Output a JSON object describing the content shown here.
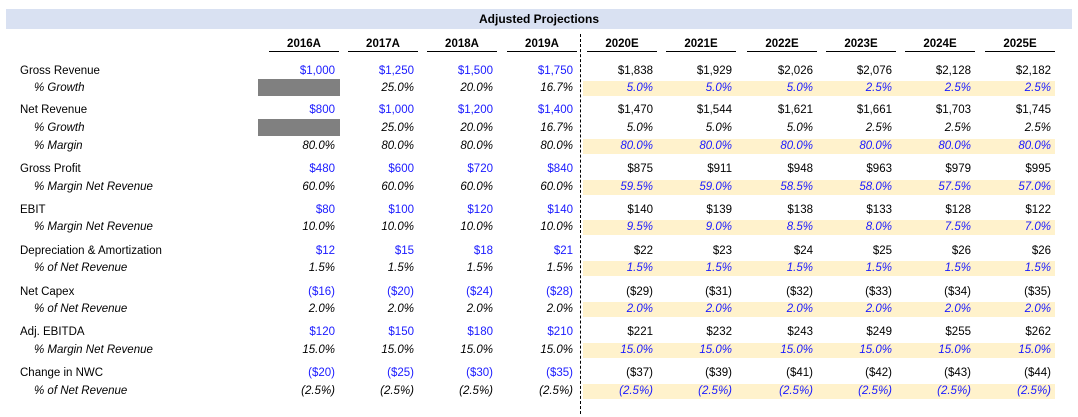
{
  "title": "Adjusted Projections",
  "years": [
    "2016A",
    "2017A",
    "2018A",
    "2019A",
    "2020E",
    "2021E",
    "2022E",
    "2023E",
    "2024E",
    "2025E"
  ],
  "rows": [
    {
      "label": "Gross Revenue",
      "values": [
        "$1,000",
        "$1,250",
        "$1,500",
        "$1,750",
        "$1,838",
        "$1,929",
        "$2,026",
        "$2,076",
        "$2,128",
        "$2,182"
      ]
    },
    {
      "label": "% Growth",
      "values": [
        "",
        "25.0%",
        "20.0%",
        "16.7%",
        "5.0%",
        "5.0%",
        "5.0%",
        "2.5%",
        "2.5%",
        "2.5%"
      ]
    },
    {
      "label": "Net Revenue",
      "values": [
        "$800",
        "$1,000",
        "$1,200",
        "$1,400",
        "$1,470",
        "$1,544",
        "$1,621",
        "$1,661",
        "$1,703",
        "$1,745"
      ]
    },
    {
      "label": "% Growth",
      "values": [
        "",
        "25.0%",
        "20.0%",
        "16.7%",
        "5.0%",
        "5.0%",
        "5.0%",
        "2.5%",
        "2.5%",
        "2.5%"
      ]
    },
    {
      "label": "% Margin",
      "values": [
        "80.0%",
        "80.0%",
        "80.0%",
        "80.0%",
        "80.0%",
        "80.0%",
        "80.0%",
        "80.0%",
        "80.0%",
        "80.0%"
      ]
    },
    {
      "label": "Gross Profit",
      "values": [
        "$480",
        "$600",
        "$720",
        "$840",
        "$875",
        "$911",
        "$948",
        "$963",
        "$979",
        "$995"
      ]
    },
    {
      "label": "% Margin Net Revenue",
      "values": [
        "60.0%",
        "60.0%",
        "60.0%",
        "60.0%",
        "59.5%",
        "59.0%",
        "58.5%",
        "58.0%",
        "57.5%",
        "57.0%"
      ]
    },
    {
      "label": "EBIT",
      "values": [
        "$80",
        "$100",
        "$120",
        "$140",
        "$140",
        "$139",
        "$138",
        "$133",
        "$128",
        "$122"
      ]
    },
    {
      "label": "% Margin Net Revenue",
      "values": [
        "10.0%",
        "10.0%",
        "10.0%",
        "10.0%",
        "9.5%",
        "9.0%",
        "8.5%",
        "8.0%",
        "7.5%",
        "7.0%"
      ]
    },
    {
      "label": "Depreciation & Amortization",
      "values": [
        "$12",
        "$15",
        "$18",
        "$21",
        "$22",
        "$23",
        "$24",
        "$25",
        "$26",
        "$26"
      ]
    },
    {
      "label": "% of Net Revenue",
      "values": [
        "1.5%",
        "1.5%",
        "1.5%",
        "1.5%",
        "1.5%",
        "1.5%",
        "1.5%",
        "1.5%",
        "1.5%",
        "1.5%"
      ]
    },
    {
      "label": "Net Capex",
      "values": [
        "($16)",
        "($20)",
        "($24)",
        "($28)",
        "($29)",
        "($31)",
        "($32)",
        "($33)",
        "($34)",
        "($35)"
      ]
    },
    {
      "label": "% of Net Revenue",
      "values": [
        "2.0%",
        "2.0%",
        "2.0%",
        "2.0%",
        "2.0%",
        "2.0%",
        "2.0%",
        "2.0%",
        "2.0%",
        "2.0%"
      ]
    },
    {
      "label": "Adj. EBITDA",
      "values": [
        "$120",
        "$150",
        "$180",
        "$210",
        "$221",
        "$232",
        "$243",
        "$249",
        "$255",
        "$262"
      ]
    },
    {
      "label": "% Margin Net Revenue",
      "values": [
        "15.0%",
        "15.0%",
        "15.0%",
        "15.0%",
        "15.0%",
        "15.0%",
        "15.0%",
        "15.0%",
        "15.0%",
        "15.0%"
      ]
    },
    {
      "label": "Change in NWC",
      "values": [
        "($20)",
        "($25)",
        "($30)",
        "($35)",
        "($37)",
        "($39)",
        "($41)",
        "($42)",
        "($43)",
        "($44)"
      ]
    },
    {
      "label": "% of Net Revenue",
      "values": [
        "(2.5%)",
        "(2.5%)",
        "(2.5%)",
        "(2.5%)",
        "(2.5%)",
        "(2.5%)",
        "(2.5%)",
        "(2.5%)",
        "(2.5%)",
        "(2.5%)"
      ]
    }
  ],
  "colors": {
    "header_fill": "#d9e1f2",
    "input_blue": "#1a1aff",
    "projection_fill": "#fff2cc",
    "placeholder_grey": "#808080"
  }
}
